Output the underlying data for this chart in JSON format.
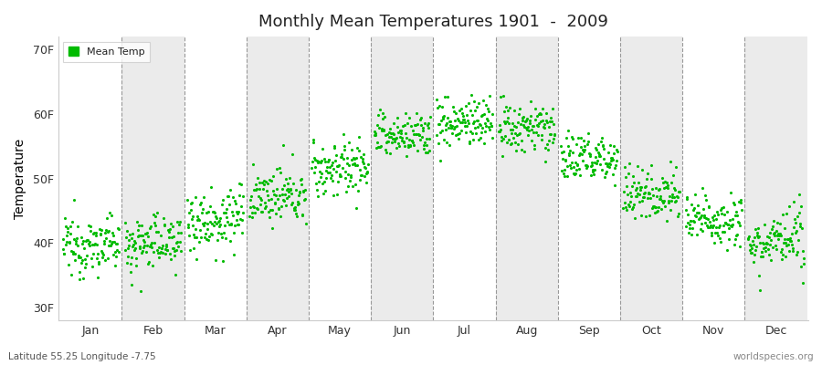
{
  "title": "Monthly Mean Temperatures 1901  -  2009",
  "ylabel": "Temperature",
  "ytick_labels": [
    "30F",
    "40F",
    "50F",
    "60F",
    "70F"
  ],
  "ytick_values": [
    30,
    40,
    50,
    60,
    70
  ],
  "ylim": [
    28,
    72
  ],
  "dot_color": "#00bb00",
  "legend_label": "Mean Temp",
  "background_color": "#ffffff",
  "band_color_white": "#ffffff",
  "band_color_gray": "#ebebeb",
  "bottom_left_text": "Latitude 55.25 Longitude -7.75",
  "bottom_right_text": "worldspecies.org",
  "months": [
    "Jan",
    "Feb",
    "Mar",
    "Apr",
    "May",
    "Jun",
    "Jul",
    "Aug",
    "Sep",
    "Oct",
    "Nov",
    "Dec"
  ],
  "year_start": 1901,
  "year_end": 2009,
  "mean_by_month": {
    "Jan": {
      "mean": 39.5,
      "std": 2.2,
      "outlier_low": 33.5
    },
    "Feb": {
      "mean": 40.0,
      "std": 2.0,
      "outlier_low": 32.5
    },
    "Mar": {
      "mean": 43.5,
      "std": 2.5,
      "outlier_low": 37.0
    },
    "Apr": {
      "mean": 47.0,
      "std": 2.0,
      "outlier_low": 43.0
    },
    "May": {
      "mean": 51.5,
      "std": 2.2,
      "outlier_low": 47.0
    },
    "Jun": {
      "mean": 56.5,
      "std": 1.8,
      "outlier_low": 53.0
    },
    "Jul": {
      "mean": 58.5,
      "std": 2.0,
      "outlier_low": 55.0
    },
    "Aug": {
      "mean": 57.5,
      "std": 2.0,
      "outlier_low": 54.0
    },
    "Sep": {
      "mean": 53.0,
      "std": 2.0,
      "outlier_low": 49.0
    },
    "Oct": {
      "mean": 47.5,
      "std": 2.0,
      "outlier_low": 44.0
    },
    "Nov": {
      "mean": 43.5,
      "std": 2.0,
      "outlier_low": 40.0
    },
    "Dec": {
      "mean": 40.0,
      "std": 2.2,
      "outlier_low": 36.5
    }
  }
}
